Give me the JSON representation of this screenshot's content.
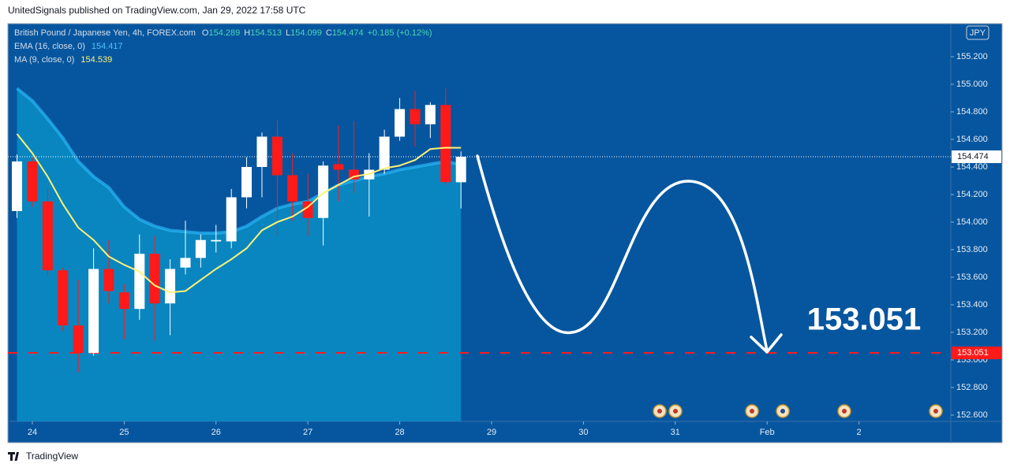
{
  "header": {
    "published": "UnitedSignals published on TradingView.com, Jan 29, 2022 17:58 UTC"
  },
  "footer": {
    "brand": "TradingView"
  },
  "currency": "JPY",
  "chart_data": {
    "type": "candlestick",
    "title": "British Pound / Japanese Yen, 4h, FOREX.com",
    "ohlc_labels": [
      "O",
      "H",
      "L",
      "C"
    ],
    "change": "+0.185 (+0.12%)",
    "x": [
      23.833,
      24,
      24.167,
      24.333,
      24.5,
      24.667,
      24.833,
      25,
      25.167,
      25.333,
      25.5,
      25.667,
      25.833,
      26,
      26.167,
      26.333,
      26.5,
      26.667,
      26.833,
      27,
      27.167,
      27.333,
      27.5,
      27.667,
      27.833,
      28,
      28.167,
      28.333,
      28.5,
      28.667
    ],
    "open": [
      154.08,
      154.44,
      154.15,
      153.65,
      153.25,
      153.05,
      153.66,
      153.49,
      153.37,
      153.77,
      153.41,
      153.67,
      153.74,
      153.86,
      153.86,
      154.18,
      154.4,
      154.62,
      154.34,
      154.15,
      154.03,
      154.42,
      154.38,
      154.31,
      154.38,
      154.62,
      154.82,
      154.71,
      154.85,
      154.289
    ],
    "high": [
      154.49,
      154.47,
      154.24,
      153.67,
      153.58,
      153.81,
      153.87,
      153.55,
      153.91,
      153.9,
      153.73,
      154.01,
      153.91,
      153.98,
      154.24,
      154.47,
      154.65,
      154.74,
      154.5,
      154.35,
      154.44,
      154.7,
      154.73,
      154.5,
      154.67,
      154.9,
      154.95,
      154.87,
      154.97,
      154.513
    ],
    "low": [
      154.03,
      154.11,
      153.61,
      153.21,
      152.91,
      153.03,
      153.41,
      153.15,
      153.29,
      153.14,
      153.18,
      153.62,
      153.67,
      153.78,
      153.81,
      154.1,
      154.18,
      153.9,
      154.01,
      153.9,
      153.83,
      154.15,
      154.21,
      154.04,
      154.35,
      154.59,
      154.55,
      154.61,
      154.27,
      154.099
    ],
    "close": [
      154.44,
      154.15,
      153.65,
      153.25,
      153.05,
      153.66,
      153.5,
      153.37,
      153.77,
      153.41,
      153.66,
      153.74,
      153.87,
      153.87,
      154.18,
      154.4,
      154.62,
      154.34,
      154.15,
      154.03,
      154.41,
      154.38,
      154.31,
      154.38,
      154.62,
      154.82,
      154.71,
      154.85,
      154.29,
      154.474
    ],
    "up_color": "#ffffff",
    "down_color": "#ff1a1a",
    "series": [
      {
        "name": "EMA (16, close, 0)",
        "color": "#29b6f6",
        "values": [
          154.97,
          154.88,
          154.75,
          154.61,
          154.44,
          154.33,
          154.25,
          154.11,
          154.02,
          153.97,
          153.94,
          153.93,
          153.92,
          153.92,
          153.93,
          153.97,
          154.04,
          154.1,
          154.13,
          154.15,
          154.21,
          154.27,
          154.3,
          154.33,
          154.35,
          154.38,
          154.4,
          154.42,
          154.44,
          154.417
        ]
      },
      {
        "name": "MA (9, close, 0)",
        "color": "#fff176",
        "values": [
          154.64,
          154.5,
          154.33,
          154.13,
          153.96,
          153.87,
          153.75,
          153.69,
          153.64,
          153.54,
          153.49,
          153.5,
          153.58,
          153.66,
          153.73,
          153.81,
          153.94,
          154.0,
          154.04,
          154.11,
          154.21,
          154.27,
          154.33,
          154.35,
          154.39,
          154.41,
          154.45,
          154.53,
          154.54,
          154.539
        ]
      }
    ],
    "target": 153.051,
    "target_color": "#ff1a1a",
    "xlim": [
      23.734,
      34.0
    ],
    "xticks": [
      24,
      25,
      26,
      27,
      28,
      29,
      30,
      31,
      {
        "value": 32,
        "label": "Feb"
      },
      {
        "value": 33,
        "label": "2"
      }
    ],
    "ylim": [
      152.554,
      155.44
    ],
    "yticks": [
      {
        "value": 152.6,
        "label": "152.600"
      },
      {
        "value": 152.8,
        "label": "152.800"
      },
      {
        "value": 153.0,
        "label": "153.000"
      },
      {
        "value": 153.2,
        "label": "153.200"
      },
      {
        "value": 153.4,
        "label": "153.400"
      },
      {
        "value": 153.6,
        "label": "153.600"
      },
      {
        "value": 153.8,
        "label": "153.800"
      },
      {
        "value": 154.0,
        "label": "154.000"
      },
      {
        "value": 154.2,
        "label": "154.200"
      },
      {
        "value": 154.4,
        "label": "154.400"
      },
      {
        "value": 154.6,
        "label": "154.600"
      },
      {
        "value": 154.8,
        "label": "154.800"
      },
      {
        "value": 155.0,
        "label": "155.000"
      },
      {
        "value": 155.2,
        "label": "155.200"
      }
    ]
  }
}
